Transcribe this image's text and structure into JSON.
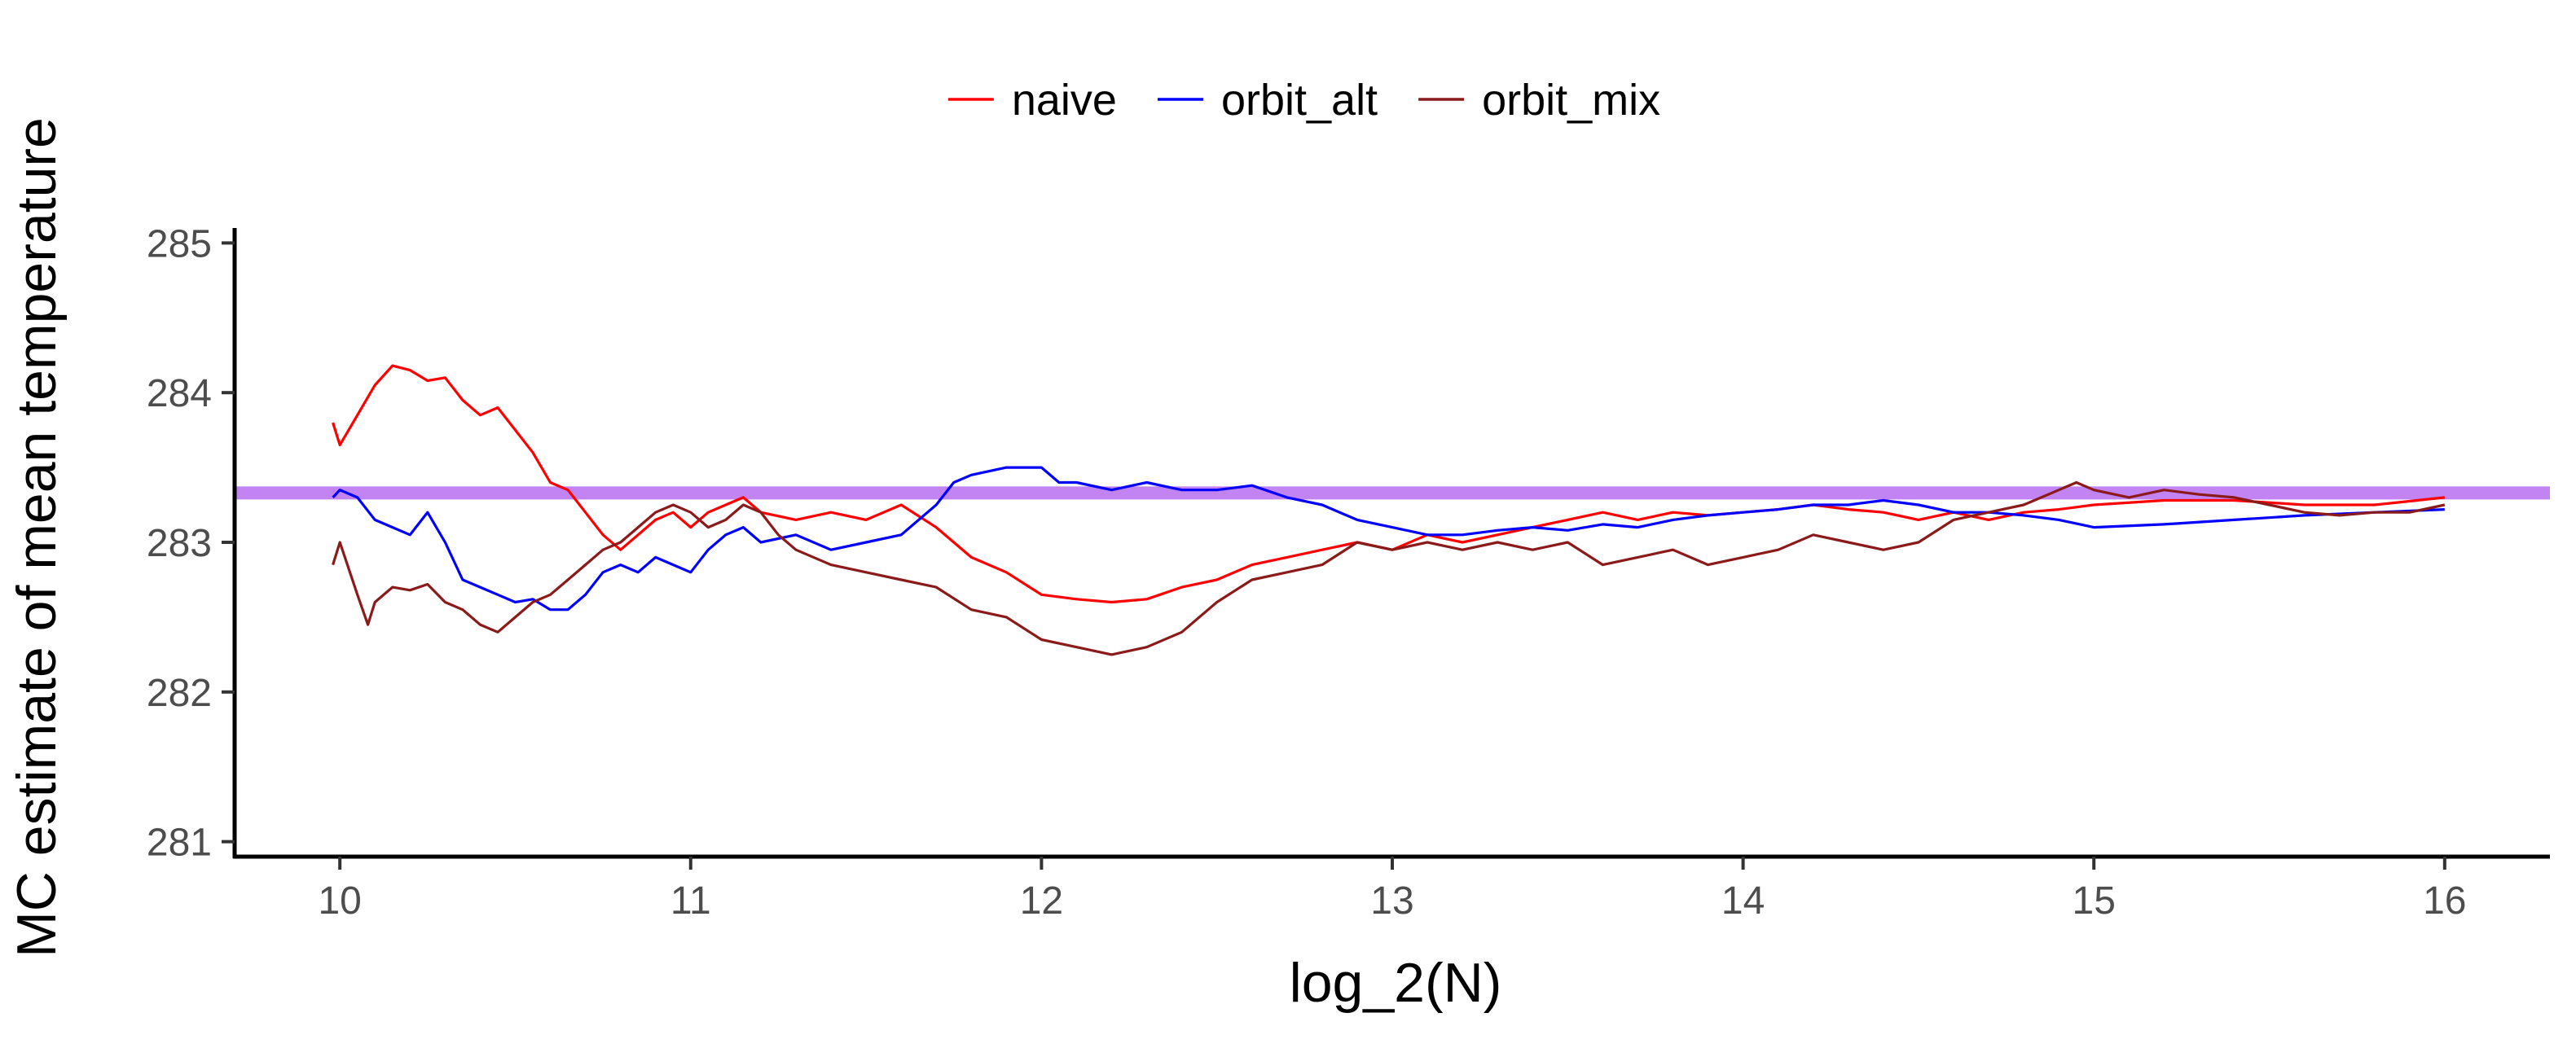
{
  "chart_data": {
    "type": "line",
    "title": "",
    "xlabel": "log_2(N)",
    "ylabel": "MC estimate of mean temperature",
    "xlim": [
      9.7,
      16.3
    ],
    "ylim": [
      280.9,
      285.1
    ],
    "x_ticks": [
      10,
      11,
      12,
      13,
      14,
      15,
      16
    ],
    "y_ticks": [
      281,
      282,
      283,
      284,
      285
    ],
    "grid": false,
    "legend_position": "top",
    "reference_line": {
      "y": 283.33,
      "color": "#c184f2"
    },
    "series": [
      {
        "name": "naive",
        "color": "#ff0000",
        "points": [
          [
            9.98,
            283.8
          ],
          [
            10.0,
            283.65
          ],
          [
            10.05,
            283.85
          ],
          [
            10.1,
            284.05
          ],
          [
            10.15,
            284.18
          ],
          [
            10.2,
            284.15
          ],
          [
            10.25,
            284.08
          ],
          [
            10.3,
            284.1
          ],
          [
            10.35,
            283.95
          ],
          [
            10.4,
            283.85
          ],
          [
            10.45,
            283.9
          ],
          [
            10.5,
            283.75
          ],
          [
            10.55,
            283.6
          ],
          [
            10.6,
            283.4
          ],
          [
            10.65,
            283.35
          ],
          [
            10.7,
            283.2
          ],
          [
            10.75,
            283.05
          ],
          [
            10.8,
            282.95
          ],
          [
            10.85,
            283.05
          ],
          [
            10.9,
            283.15
          ],
          [
            10.95,
            283.2
          ],
          [
            11.0,
            283.1
          ],
          [
            11.05,
            283.2
          ],
          [
            11.1,
            283.25
          ],
          [
            11.15,
            283.3
          ],
          [
            11.2,
            283.2
          ],
          [
            11.3,
            283.15
          ],
          [
            11.4,
            283.2
          ],
          [
            11.5,
            283.15
          ],
          [
            11.6,
            283.25
          ],
          [
            11.7,
            283.1
          ],
          [
            11.8,
            282.9
          ],
          [
            11.9,
            282.8
          ],
          [
            12.0,
            282.65
          ],
          [
            12.1,
            282.62
          ],
          [
            12.2,
            282.6
          ],
          [
            12.3,
            282.62
          ],
          [
            12.4,
            282.7
          ],
          [
            12.5,
            282.75
          ],
          [
            12.6,
            282.85
          ],
          [
            12.7,
            282.9
          ],
          [
            12.8,
            282.95
          ],
          [
            12.9,
            283.0
          ],
          [
            13.0,
            282.95
          ],
          [
            13.1,
            283.05
          ],
          [
            13.2,
            283.0
          ],
          [
            13.3,
            283.05
          ],
          [
            13.4,
            283.1
          ],
          [
            13.5,
            283.15
          ],
          [
            13.6,
            283.2
          ],
          [
            13.7,
            283.15
          ],
          [
            13.8,
            283.2
          ],
          [
            13.9,
            283.18
          ],
          [
            14.0,
            283.2
          ],
          [
            14.1,
            283.22
          ],
          [
            14.2,
            283.25
          ],
          [
            14.3,
            283.22
          ],
          [
            14.4,
            283.2
          ],
          [
            14.5,
            283.15
          ],
          [
            14.6,
            283.2
          ],
          [
            14.7,
            283.15
          ],
          [
            14.8,
            283.2
          ],
          [
            14.9,
            283.22
          ],
          [
            15.0,
            283.25
          ],
          [
            15.2,
            283.28
          ],
          [
            15.4,
            283.28
          ],
          [
            15.6,
            283.25
          ],
          [
            15.8,
            283.25
          ],
          [
            16.0,
            283.3
          ]
        ]
      },
      {
        "name": "orbit_alt",
        "color": "#0000ff",
        "points": [
          [
            9.98,
            283.3
          ],
          [
            10.0,
            283.35
          ],
          [
            10.05,
            283.3
          ],
          [
            10.1,
            283.15
          ],
          [
            10.15,
            283.1
          ],
          [
            10.2,
            283.05
          ],
          [
            10.25,
            283.2
          ],
          [
            10.3,
            283.0
          ],
          [
            10.35,
            282.75
          ],
          [
            10.4,
            282.7
          ],
          [
            10.45,
            282.65
          ],
          [
            10.5,
            282.6
          ],
          [
            10.55,
            282.62
          ],
          [
            10.6,
            282.55
          ],
          [
            10.65,
            282.55
          ],
          [
            10.7,
            282.65
          ],
          [
            10.75,
            282.8
          ],
          [
            10.8,
            282.85
          ],
          [
            10.85,
            282.8
          ],
          [
            10.9,
            282.9
          ],
          [
            10.95,
            282.85
          ],
          [
            11.0,
            282.8
          ],
          [
            11.05,
            282.95
          ],
          [
            11.1,
            283.05
          ],
          [
            11.15,
            283.1
          ],
          [
            11.2,
            283.0
          ],
          [
            11.3,
            283.05
          ],
          [
            11.4,
            282.95
          ],
          [
            11.5,
            283.0
          ],
          [
            11.6,
            283.05
          ],
          [
            11.7,
            283.25
          ],
          [
            11.75,
            283.4
          ],
          [
            11.8,
            283.45
          ],
          [
            11.9,
            283.5
          ],
          [
            12.0,
            283.5
          ],
          [
            12.05,
            283.4
          ],
          [
            12.1,
            283.4
          ],
          [
            12.2,
            283.35
          ],
          [
            12.3,
            283.4
          ],
          [
            12.4,
            283.35
          ],
          [
            12.5,
            283.35
          ],
          [
            12.6,
            283.38
          ],
          [
            12.7,
            283.3
          ],
          [
            12.8,
            283.25
          ],
          [
            12.9,
            283.15
          ],
          [
            13.0,
            283.1
          ],
          [
            13.1,
            283.05
          ],
          [
            13.2,
            283.05
          ],
          [
            13.3,
            283.08
          ],
          [
            13.4,
            283.1
          ],
          [
            13.5,
            283.08
          ],
          [
            13.6,
            283.12
          ],
          [
            13.7,
            283.1
          ],
          [
            13.8,
            283.15
          ],
          [
            13.9,
            283.18
          ],
          [
            14.0,
            283.2
          ],
          [
            14.1,
            283.22
          ],
          [
            14.2,
            283.25
          ],
          [
            14.3,
            283.25
          ],
          [
            14.4,
            283.28
          ],
          [
            14.5,
            283.25
          ],
          [
            14.6,
            283.2
          ],
          [
            14.7,
            283.2
          ],
          [
            14.8,
            283.18
          ],
          [
            14.9,
            283.15
          ],
          [
            15.0,
            283.1
          ],
          [
            15.2,
            283.12
          ],
          [
            15.4,
            283.15
          ],
          [
            15.6,
            283.18
          ],
          [
            15.8,
            283.2
          ],
          [
            16.0,
            283.22
          ]
        ]
      },
      {
        "name": "orbit_mix",
        "color": "#8b1a1a",
        "points": [
          [
            9.98,
            282.85
          ],
          [
            10.0,
            283.0
          ],
          [
            10.05,
            282.65
          ],
          [
            10.08,
            282.45
          ],
          [
            10.1,
            282.6
          ],
          [
            10.15,
            282.7
          ],
          [
            10.2,
            282.68
          ],
          [
            10.25,
            282.72
          ],
          [
            10.3,
            282.6
          ],
          [
            10.35,
            282.55
          ],
          [
            10.4,
            282.45
          ],
          [
            10.45,
            282.4
          ],
          [
            10.5,
            282.5
          ],
          [
            10.55,
            282.6
          ],
          [
            10.6,
            282.65
          ],
          [
            10.65,
            282.75
          ],
          [
            10.7,
            282.85
          ],
          [
            10.75,
            282.95
          ],
          [
            10.8,
            283.0
          ],
          [
            10.85,
            283.1
          ],
          [
            10.9,
            283.2
          ],
          [
            10.95,
            283.25
          ],
          [
            11.0,
            283.2
          ],
          [
            11.05,
            283.1
          ],
          [
            11.1,
            283.15
          ],
          [
            11.15,
            283.25
          ],
          [
            11.2,
            283.2
          ],
          [
            11.25,
            283.05
          ],
          [
            11.3,
            282.95
          ],
          [
            11.4,
            282.85
          ],
          [
            11.5,
            282.8
          ],
          [
            11.6,
            282.75
          ],
          [
            11.7,
            282.7
          ],
          [
            11.8,
            282.55
          ],
          [
            11.9,
            282.5
          ],
          [
            12.0,
            282.35
          ],
          [
            12.1,
            282.3
          ],
          [
            12.2,
            282.25
          ],
          [
            12.3,
            282.3
          ],
          [
            12.4,
            282.4
          ],
          [
            12.5,
            282.6
          ],
          [
            12.6,
            282.75
          ],
          [
            12.7,
            282.8
          ],
          [
            12.8,
            282.85
          ],
          [
            12.9,
            283.0
          ],
          [
            13.0,
            282.95
          ],
          [
            13.1,
            283.0
          ],
          [
            13.2,
            282.95
          ],
          [
            13.3,
            283.0
          ],
          [
            13.4,
            282.95
          ],
          [
            13.5,
            283.0
          ],
          [
            13.6,
            282.85
          ],
          [
            13.7,
            282.9
          ],
          [
            13.8,
            282.95
          ],
          [
            13.9,
            282.85
          ],
          [
            14.0,
            282.9
          ],
          [
            14.1,
            282.95
          ],
          [
            14.2,
            283.05
          ],
          [
            14.3,
            283.0
          ],
          [
            14.4,
            282.95
          ],
          [
            14.5,
            283.0
          ],
          [
            14.6,
            283.15
          ],
          [
            14.7,
            283.2
          ],
          [
            14.8,
            283.25
          ],
          [
            14.9,
            283.35
          ],
          [
            14.95,
            283.4
          ],
          [
            15.0,
            283.35
          ],
          [
            15.1,
            283.3
          ],
          [
            15.2,
            283.35
          ],
          [
            15.3,
            283.32
          ],
          [
            15.4,
            283.3
          ],
          [
            15.5,
            283.25
          ],
          [
            15.6,
            283.2
          ],
          [
            15.7,
            283.18
          ],
          [
            15.8,
            283.2
          ],
          [
            15.9,
            283.2
          ],
          [
            16.0,
            283.25
          ]
        ]
      }
    ]
  }
}
